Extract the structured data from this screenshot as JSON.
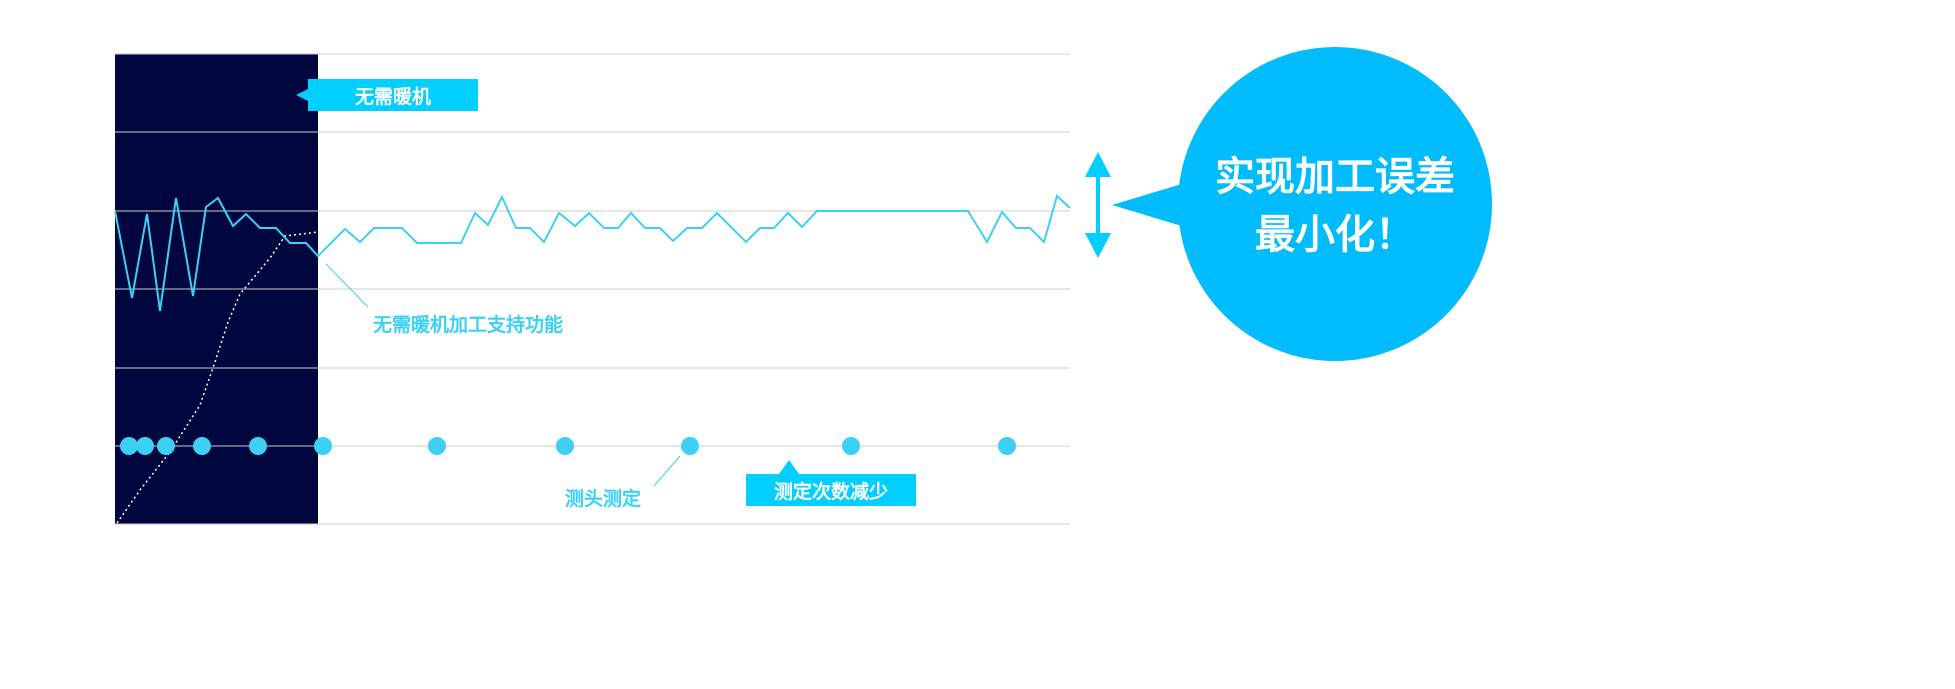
{
  "labels": {
    "no_warmup": "无需暖机",
    "no_warmup_support": "无需暖机加工支持功能",
    "probe_measure": "测头测定",
    "fewer_measurements": "测定次数减少"
  },
  "callout": {
    "line1": "实现加工误差",
    "line2": "最小化！"
  },
  "colors": {
    "dark_panel": "#00063e",
    "accent": "#00cfff",
    "line": "#3dd0f5",
    "bubble": "#00bcfd",
    "grid": "#cccccc"
  }
}
